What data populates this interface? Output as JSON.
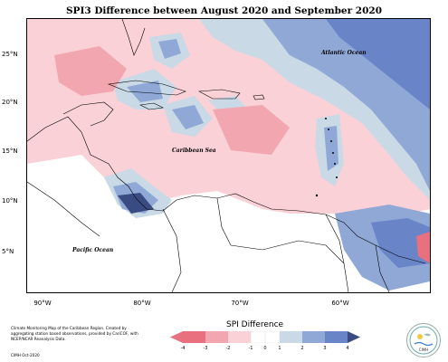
{
  "title": "SPI3 Difference between August 2020 and September 2020",
  "map": {
    "lat_labels": [
      "25°N",
      "20°N",
      "15°N",
      "10°N",
      "5°N"
    ],
    "lon_labels": [
      "90°W",
      "80°W",
      "70°W",
      "60°W"
    ],
    "ocean_labels": {
      "atlantic": "Atlantic Ocean",
      "caribbean": "Caribbean Sea",
      "pacific": "Pacific Ocean"
    },
    "colors": {
      "neg_high": "#e8707f",
      "neg_mid": "#f2a6b0",
      "neg_low": "#fad1d7",
      "near_zero": "#ffffff",
      "pos_low": "#c9d9e6",
      "pos_mid": "#8fa8d6",
      "pos_high": "#6a84c8",
      "pos_extreme": "#3a4b82"
    }
  },
  "legend": {
    "title": "SPI Difference",
    "ticks": [
      "-4",
      "-3",
      "-2",
      "-1",
      "0",
      "1",
      "2",
      "3",
      "4"
    ]
  },
  "info": {
    "description": "Climate Monitoring Map of the Caribbean Region. Created by aggregating station based observations, provided by CariCOF, with NCEP/NCAR Reanalysis Data.",
    "credit": "CIMH Oct-2020"
  },
  "logo": {
    "text": "CIMH"
  }
}
